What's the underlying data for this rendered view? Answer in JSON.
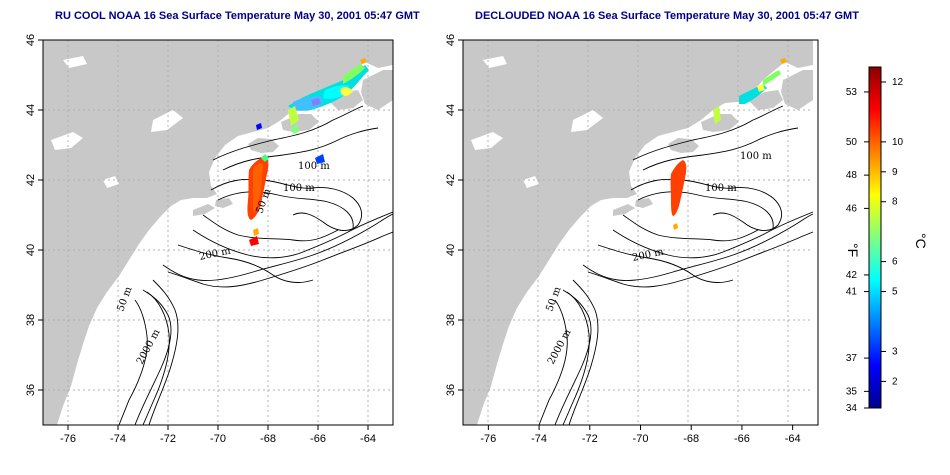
{
  "maps": [
    {
      "id": "left",
      "title": "RU COOL NOAA 16 Sea Surface Temperature May 30, 2001 05:47 GMT",
      "contour_labels": [
        "100 m",
        "100 m",
        "50 m",
        "200 m",
        "50 m",
        "2000 m"
      ],
      "sst_visible": "full"
    },
    {
      "id": "right",
      "title": "DECLOUDED NOAA 16 Sea Surface Temperature May 30, 2001 05:47 GMT",
      "contour_labels": [
        "100 m",
        "100 m",
        "200 m",
        "50 m",
        "2000 m"
      ],
      "sst_visible": "declouded"
    }
  ],
  "axes": {
    "x_ticks": [
      "-76",
      "-74",
      "-72",
      "-70",
      "-68",
      "-66",
      "-64"
    ],
    "y_ticks": [
      "36",
      "38",
      "40",
      "42",
      "44",
      "46"
    ],
    "lon_range": [
      -77,
      -63
    ],
    "lat_range": [
      35,
      46
    ]
  },
  "colorbar": {
    "fahrenheit_label": "°F",
    "celsius_label": "°C",
    "fahrenheit_ticks": [
      "53",
      "50",
      "48",
      "46",
      "42",
      "41",
      "37",
      "35",
      "34"
    ],
    "celsius_ticks": [
      "12",
      "10",
      "9",
      "8",
      "6",
      "5",
      "3",
      "2"
    ],
    "colors": [
      "#00008b",
      "#0000ff",
      "#0080ff",
      "#00ffff",
      "#80ff80",
      "#ffff00",
      "#ff8000",
      "#ff0000",
      "#8b0000"
    ]
  },
  "colors": {
    "land": "#c8c8c8",
    "water": "#ffffff",
    "title": "#00008b",
    "grid": "#b0b0b0"
  }
}
